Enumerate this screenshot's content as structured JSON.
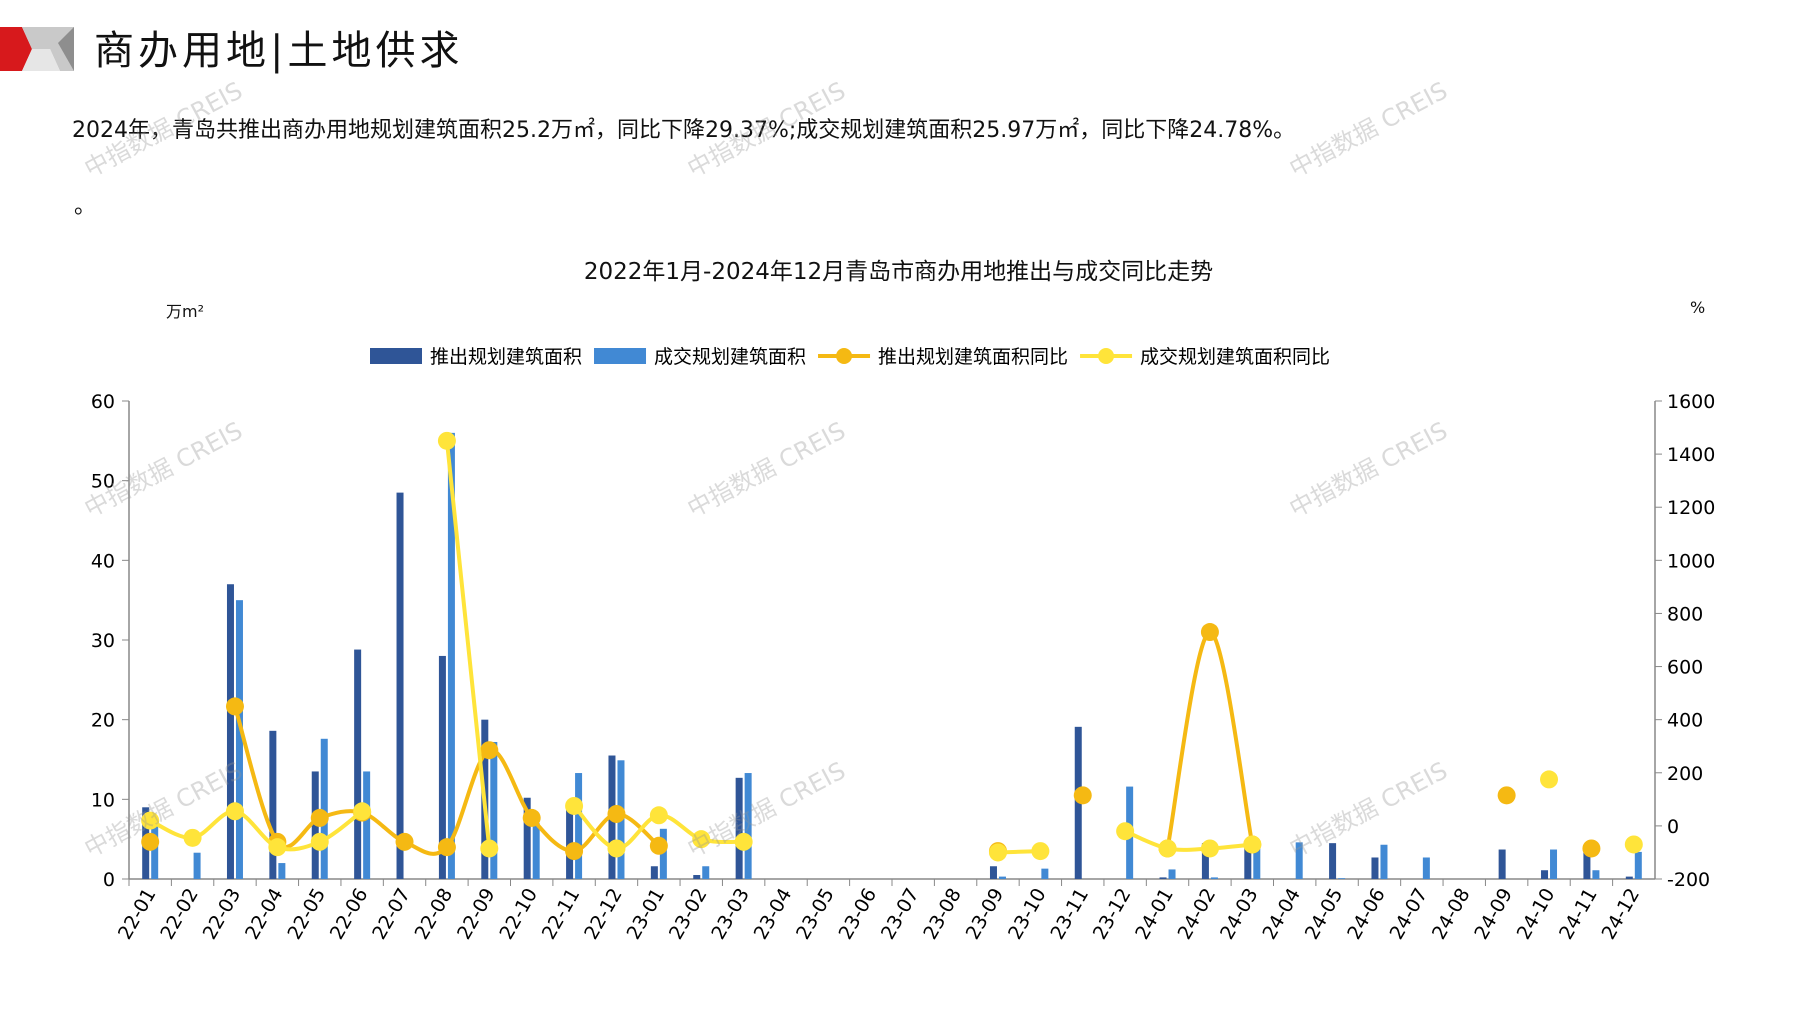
{
  "header": {
    "title": "商办用地|土地供求",
    "summary": "2024年，青岛共推出商办用地规划建筑面积25.2万㎡，同比下降29.37%;成交规划建筑面积25.97万㎡，同比下降24.78%。",
    "trailing_mark": "。"
  },
  "watermark": "中指数据 CREIS",
  "colors": {
    "supply_bar": "#2f5597",
    "deal_bar": "#4189d4",
    "supply_yoy": "#f5b913",
    "deal_yoy": "#ffe43a",
    "logo_red": "#d7191c",
    "logo_gray": "#b0b0b0"
  },
  "chart_data": {
    "type": "bar+line",
    "title": "2022年1月-2024年12月青岛市商办用地推出与成交同比走势",
    "ylabel_left": "万m²",
    "ylabel_right": "%",
    "ylim_left": [
      0,
      60
    ],
    "ylim_right": [
      -200,
      1600
    ],
    "yticks_left": [
      "0",
      "10",
      "20",
      "30",
      "40",
      "50",
      "60"
    ],
    "yticks_right": [
      "-200",
      "0",
      "200",
      "400",
      "600",
      "800",
      "1000",
      "1200",
      "1400",
      "1600"
    ],
    "legend_position": "top",
    "grid": false,
    "categories": [
      "22-01",
      "22-02",
      "22-03",
      "22-04",
      "22-05",
      "22-06",
      "22-07",
      "22-08",
      "22-09",
      "22-10",
      "22-11",
      "22-12",
      "23-01",
      "23-02",
      "23-03",
      "23-04",
      "23-05",
      "23-06",
      "23-07",
      "23-08",
      "23-09",
      "23-10",
      "23-11",
      "23-12",
      "24-01",
      "24-02",
      "24-03",
      "24-04",
      "24-05",
      "24-06",
      "24-07",
      "24-08",
      "24-09",
      "24-10",
      "24-11",
      "24-12"
    ],
    "series": [
      {
        "name": "推出规划建筑面积",
        "type": "bar",
        "axis": "left",
        "values": [
          9,
          0,
          37,
          18.6,
          13.5,
          28.8,
          48.5,
          28,
          20,
          10.2,
          9,
          15.5,
          1.6,
          0.5,
          12.7,
          0,
          0,
          0,
          0,
          0,
          1.6,
          0,
          19.1,
          0,
          0.2,
          4.5,
          4.5,
          0,
          4.5,
          2.7,
          0,
          0,
          3.7,
          1.1,
          3.5,
          0.3
        ]
      },
      {
        "name": "成交规划建筑面积",
        "type": "bar",
        "axis": "left",
        "values": [
          7,
          3.3,
          35,
          2,
          17.6,
          13.5,
          0,
          56,
          17.2,
          7,
          13.3,
          14.9,
          6.3,
          1.6,
          13.3,
          0,
          0,
          0,
          0,
          0,
          0.3,
          1.3,
          0,
          11.6,
          1.2,
          0.2,
          4.5,
          4.6,
          0.1,
          4.3,
          2.7,
          0,
          0,
          3.7,
          1.1,
          3.4
        ]
      },
      {
        "name": "推出规划建筑面积同比",
        "type": "line",
        "axis": "right",
        "values": [
          -60,
          null,
          450,
          -60,
          30,
          50,
          -60,
          -80,
          285,
          30,
          -95,
          45,
          -75,
          null,
          null,
          null,
          null,
          null,
          null,
          null,
          -95,
          null,
          115,
          null,
          -85,
          730,
          -70,
          null,
          null,
          null,
          null,
          null,
          115,
          null,
          -85,
          null
        ]
      },
      {
        "name": "成交规划建筑面积同比",
        "type": "line",
        "axis": "right",
        "values": [
          20,
          -45,
          55,
          -80,
          -60,
          55,
          null,
          1450,
          -85,
          null,
          75,
          -85,
          40,
          -50,
          -60,
          null,
          null,
          null,
          null,
          null,
          -100,
          -95,
          null,
          -20,
          -85,
          -85,
          -70,
          null,
          null,
          null,
          null,
          null,
          null,
          175,
          null,
          -70
        ]
      }
    ]
  }
}
